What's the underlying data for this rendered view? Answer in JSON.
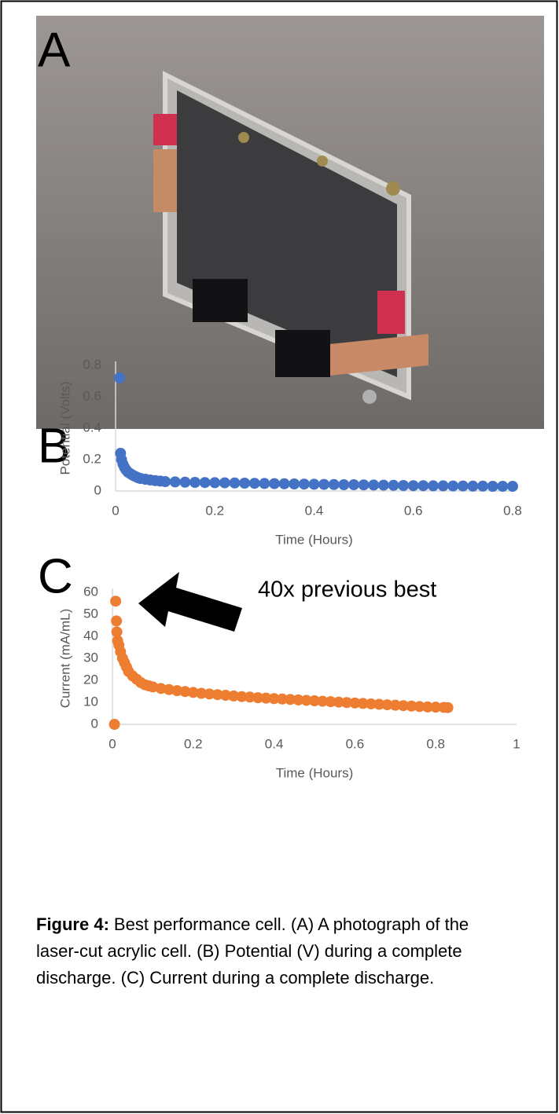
{
  "panels": {
    "a": "A",
    "b": "B",
    "c": "C"
  },
  "chart_data": [
    {
      "type": "scatter",
      "xlabel": "Time (Hours)",
      "ylabel": "Potential (Volts)",
      "xlim": [
        0,
        0.8
      ],
      "xticks": [
        0,
        0.2,
        0.4,
        0.6,
        0.8
      ],
      "ylim": [
        0,
        0.8
      ],
      "yticks": [
        0,
        0.2,
        0.4,
        0.6,
        0.8
      ],
      "x": [
        0.008,
        0.01,
        0.012,
        0.015,
        0.018,
        0.021,
        0.025,
        0.03,
        0.035,
        0.04,
        0.045,
        0.05,
        0.06,
        0.07,
        0.08,
        0.09,
        0.1,
        0.12,
        0.14,
        0.16,
        0.18,
        0.2,
        0.22,
        0.24,
        0.26,
        0.28,
        0.3,
        0.32,
        0.34,
        0.36,
        0.38,
        0.4,
        0.42,
        0.44,
        0.46,
        0.48,
        0.5,
        0.52,
        0.54,
        0.56,
        0.58,
        0.6,
        0.62,
        0.64,
        0.66,
        0.68,
        0.7,
        0.72,
        0.74,
        0.76,
        0.78,
        0.8
      ],
      "series": [
        {
          "color": "#4472c4",
          "values": [
            0.72,
            0.24,
            0.2,
            0.17,
            0.15,
            0.135,
            0.12,
            0.11,
            0.1,
            0.092,
            0.085,
            0.08,
            0.075,
            0.07,
            0.066,
            0.063,
            0.06,
            0.058,
            0.056,
            0.055,
            0.054,
            0.053,
            0.052,
            0.051,
            0.05,
            0.049,
            0.048,
            0.047,
            0.046,
            0.045,
            0.044,
            0.043,
            0.042,
            0.041,
            0.04,
            0.04,
            0.039,
            0.038,
            0.037,
            0.036,
            0.035,
            0.034,
            0.034,
            0.033,
            0.033,
            0.032,
            0.032,
            0.031,
            0.031,
            0.03,
            0.03,
            0.03
          ]
        }
      ]
    },
    {
      "type": "scatter",
      "xlabel": "Time (Hours)",
      "ylabel": "Current (mA/mL)",
      "annotation": "40x previous best",
      "xlim": [
        0,
        1
      ],
      "xticks": [
        0,
        0.2,
        0.4,
        0.6,
        0.8,
        1
      ],
      "ylim": [
        0,
        60
      ],
      "yticks": [
        0,
        10,
        20,
        30,
        40,
        50,
        60
      ],
      "x": [
        0.005,
        0.008,
        0.01,
        0.011,
        0.013,
        0.016,
        0.02,
        0.025,
        0.03,
        0.035,
        0.04,
        0.05,
        0.06,
        0.07,
        0.08,
        0.09,
        0.1,
        0.12,
        0.14,
        0.16,
        0.18,
        0.2,
        0.22,
        0.24,
        0.26,
        0.28,
        0.3,
        0.32,
        0.34,
        0.36,
        0.38,
        0.4,
        0.42,
        0.44,
        0.46,
        0.48,
        0.5,
        0.52,
        0.54,
        0.56,
        0.58,
        0.6,
        0.62,
        0.64,
        0.66,
        0.68,
        0.7,
        0.72,
        0.74,
        0.76,
        0.78,
        0.8,
        0.82,
        0.83
      ],
      "series": [
        {
          "color": "#ed7d31",
          "values": [
            0,
            56,
            47,
            42,
            38,
            36,
            33,
            30,
            28,
            26,
            24,
            22,
            20.5,
            19,
            18,
            17.5,
            17,
            16.3,
            15.8,
            15.3,
            14.9,
            14.5,
            14.1,
            13.8,
            13.5,
            13.2,
            12.9,
            12.6,
            12.4,
            12.1,
            11.9,
            11.7,
            11.5,
            11.3,
            11.1,
            10.9,
            10.7,
            10.5,
            10.3,
            10.1,
            9.9,
            9.7,
            9.5,
            9.3,
            9.1,
            8.9,
            8.7,
            8.5,
            8.3,
            8.1,
            7.9,
            7.8,
            7.7,
            7.6
          ]
        }
      ]
    }
  ],
  "caption": {
    "label": "Figure 4:",
    "text": "Best performance cell. (A) A photograph of the laser-cut acrylic cell. (B) Potential (V) during a complete discharge. (C) Current during a complete discharge."
  }
}
